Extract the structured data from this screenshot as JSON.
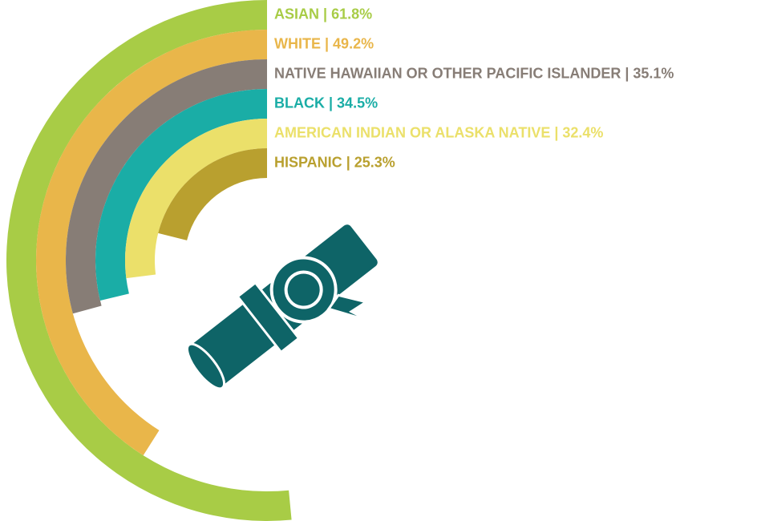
{
  "chart_data": {
    "type": "radial-bar",
    "categories": [
      "ASIAN",
      "WHITE",
      "NATIVE HAWAIIAN OR OTHER PACIFIC ISLANDER",
      "BLACK",
      "AMERICAN INDIAN OR ALASKA NATIVE",
      "HISPANIC"
    ],
    "separator": " | ",
    "values": [
      61.8,
      49.2,
      35.1,
      34.5,
      32.4,
      25.3
    ],
    "value_labels": [
      "61.8%",
      "49.2%",
      "35.1%",
      "34.5%",
      "32.4%",
      "25.3%"
    ],
    "colors": [
      "#a8cc46",
      "#e9b64a",
      "#877d76",
      "#1aada6",
      "#ebe06a",
      "#b9a02f"
    ]
  }
}
